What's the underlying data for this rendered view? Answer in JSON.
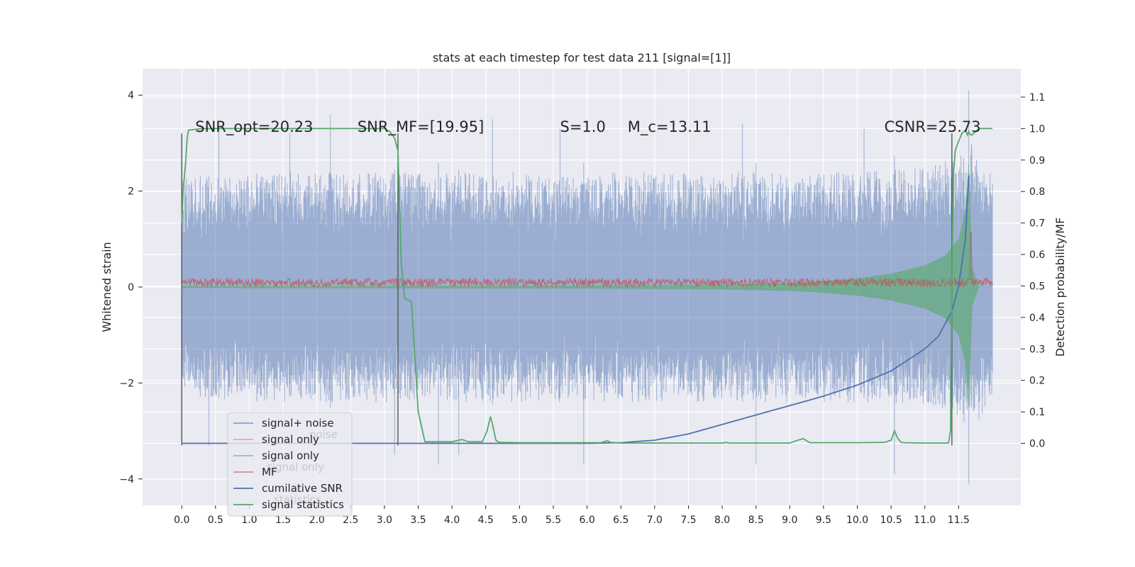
{
  "chart_data": {
    "type": "line",
    "title": "stats at each timestep for test data 211 [signal=[1]]",
    "xlabel": "",
    "ylabel": "Whitened strain",
    "y2label": "Detection probability/MF",
    "xlim": [
      -0.58,
      12.42
    ],
    "ylim": [
      -4.55,
      4.55
    ],
    "y2lim": [
      -0.197,
      1.19
    ],
    "grid": true,
    "x_ticks": [
      "0.0",
      "0.5",
      "1.0",
      "1.5",
      "2.0",
      "2.5",
      "3.0",
      "3.5",
      "4.0",
      "4.5",
      "5.0",
      "5.5",
      "6.0",
      "6.5",
      "7.0",
      "7.5",
      "8.0",
      "8.5",
      "9.0",
      "9.5",
      "10.0",
      "10.5",
      "11.0",
      "11.5"
    ],
    "y_ticks": [
      "4",
      "2",
      "0",
      "−2",
      "−4"
    ],
    "y_tick_values": [
      4,
      2,
      0,
      -2,
      -4
    ],
    "y2_ticks": [
      "1.1",
      "1.0",
      "0.9",
      "0.8",
      "0.7",
      "0.6",
      "0.5",
      "0.4",
      "0.3",
      "0.2",
      "0.1",
      "0.0"
    ],
    "y2_tick_values": [
      1.1,
      1.0,
      0.9,
      0.8,
      0.7,
      0.6,
      0.5,
      0.4,
      0.3,
      0.2,
      0.1,
      0.0
    ],
    "x_tick_values": [
      0.0,
      0.5,
      1.0,
      1.5,
      2.0,
      2.5,
      3.0,
      3.5,
      4.0,
      4.5,
      5.0,
      5.5,
      6.0,
      6.5,
      7.0,
      7.5,
      8.0,
      8.5,
      9.0,
      9.5,
      10.0,
      10.5,
      11.0,
      11.5
    ],
    "annotations": [
      {
        "text": "SNR_opt=20.23",
        "x": 0.2
      },
      {
        "text": "SNR_MF=[19.95]",
        "x": 2.6
      },
      {
        "text": "S=1.0",
        "x": 5.6
      },
      {
        "text": "M_c=13.11",
        "x": 6.6
      },
      {
        "text": "CSNR=25.73",
        "x": 10.4
      }
    ],
    "annotation_y2": 0.99,
    "legend": {
      "placement": "lower-left",
      "entries": [
        {
          "label": "signal+ noise",
          "color": "#4c72b0"
        },
        {
          "label": "signal only",
          "color": "#dd8452"
        },
        {
          "label": "signal only",
          "color": "#55a868"
        },
        {
          "label": "MF",
          "color": "#c44e52"
        },
        {
          "label": "cumilative SNR",
          "color": "#4c72b0"
        },
        {
          "label": "signal statistics",
          "color": "#55a868"
        }
      ],
      "ghost_labels": [
        "noise",
        "signal only",
        "statistics"
      ]
    },
    "series": [
      {
        "name": "signal+ noise",
        "color": "#4c72b0",
        "axis": "left",
        "envelope_x": [
          0.0,
          1.0,
          2.0,
          3.0,
          4.0,
          5.0,
          6.0,
          7.0,
          8.0,
          9.0,
          10.0,
          11.0,
          11.5,
          11.7,
          12.0
        ],
        "envelope_upper": [
          2.3,
          2.4,
          2.4,
          2.4,
          2.4,
          2.4,
          2.4,
          2.4,
          2.4,
          2.4,
          2.4,
          2.5,
          2.7,
          3.0,
          2.4
        ],
        "envelope_lower": [
          -2.3,
          -2.4,
          -2.4,
          -2.4,
          -2.4,
          -2.4,
          -2.4,
          -2.4,
          -2.4,
          -2.4,
          -2.4,
          -2.5,
          -2.7,
          -3.0,
          -2.4
        ],
        "peaks": [
          {
            "x": 2.2,
            "y": 3.6
          },
          {
            "x": 0.55,
            "y": 3.3
          },
          {
            "x": 1.6,
            "y": 3.2
          },
          {
            "x": 4.6,
            "y": 3.5
          },
          {
            "x": 5.6,
            "y": 3.3
          },
          {
            "x": 8.3,
            "y": 3.4
          },
          {
            "x": 10.1,
            "y": 3.3
          },
          {
            "x": 11.65,
            "y": 4.1
          },
          {
            "x": 4.1,
            "y": -3.5
          },
          {
            "x": 3.8,
            "y": -3.7
          },
          {
            "x": 5.95,
            "y": -3.7
          },
          {
            "x": 8.5,
            "y": -3.7
          },
          {
            "x": 10.55,
            "y": -3.9
          },
          {
            "x": 11.65,
            "y": -4.1
          },
          {
            "x": 0.4,
            "y": -3.3
          },
          {
            "x": 3.15,
            "y": -3.5
          }
        ]
      },
      {
        "name": "signal only",
        "color": "#55a868",
        "axis": "left",
        "envelope_x": [
          0.0,
          6.0,
          8.0,
          9.0,
          9.5,
          10.0,
          10.5,
          11.0,
          11.3,
          11.5,
          11.6,
          11.65,
          11.7,
          11.8,
          12.0
        ],
        "envelope_amp": [
          0.02,
          0.03,
          0.05,
          0.08,
          0.12,
          0.18,
          0.28,
          0.45,
          0.65,
          1.0,
          1.6,
          2.6,
          0.4,
          0.0,
          0.0
        ]
      },
      {
        "name": "MF",
        "color": "#c44e52",
        "axis": "right",
        "baseline": 0.5,
        "noise_band": [
          0.497,
          0.525
        ],
        "spike": {
          "x": 11.68,
          "y": 0.67
        }
      },
      {
        "name": "cumilative SNR",
        "color": "#4c72b0",
        "axis": "right",
        "x": [
          0.0,
          6.0,
          6.5,
          7.0,
          7.5,
          8.0,
          8.5,
          9.0,
          9.5,
          10.0,
          10.5,
          11.0,
          11.2,
          11.4,
          11.5,
          11.6,
          11.65
        ],
        "y": [
          0.0,
          0.0,
          0.002,
          0.01,
          0.03,
          0.06,
          0.09,
          0.12,
          0.15,
          0.185,
          0.23,
          0.3,
          0.34,
          0.42,
          0.5,
          0.65,
          0.85
        ]
      },
      {
        "name": "signal statistics",
        "color": "#55a868",
        "axis": "right",
        "x": [
          0.0,
          0.02,
          0.04,
          0.06,
          0.08,
          0.1,
          0.3,
          1.0,
          2.0,
          3.0,
          3.08,
          3.15,
          3.2,
          3.25,
          3.3,
          3.4,
          3.5,
          3.6,
          4.0,
          4.1,
          4.15,
          4.25,
          4.45,
          4.52,
          4.57,
          4.6,
          4.65,
          4.7,
          5.0,
          6.2,
          6.3,
          6.35,
          6.5,
          8.0,
          8.05,
          8.1,
          9.0,
          9.15,
          9.2,
          9.25,
          9.3,
          10.0,
          10.4,
          10.5,
          10.55,
          10.6,
          10.65,
          10.7,
          11.0,
          11.35,
          11.38,
          11.4,
          11.42,
          11.45,
          11.5,
          11.55,
          11.6,
          11.63,
          11.65,
          11.66,
          11.68,
          11.7,
          11.72,
          11.75,
          11.8,
          11.85,
          12.0
        ],
        "y": [
          0.7,
          0.8,
          0.85,
          0.9,
          0.97,
          0.995,
          1.0,
          1.0,
          1.0,
          1.0,
          0.99,
          0.97,
          0.93,
          0.57,
          0.46,
          0.45,
          0.1,
          0.005,
          0.005,
          0.01,
          0.012,
          0.005,
          0.005,
          0.04,
          0.085,
          0.06,
          0.01,
          0.003,
          0.002,
          0.002,
          0.008,
          0.003,
          0.001,
          0.001,
          0.003,
          0.001,
          0.001,
          0.012,
          0.015,
          0.008,
          0.002,
          0.002,
          0.003,
          0.01,
          0.04,
          0.015,
          0.003,
          0.002,
          0.001,
          0.001,
          0.04,
          0.5,
          0.85,
          0.93,
          0.96,
          0.985,
          0.995,
          0.98,
          0.99,
          0.985,
          0.98,
          0.98,
          0.985,
          0.99,
          1.0,
          1.0,
          1.0
        ]
      }
    ],
    "vertical_markers": [
      {
        "x": 0.0,
        "y_from": -3.3,
        "y_to": 3.2
      },
      {
        "x": 3.2,
        "y_from": -3.3,
        "y_to": 3.2
      },
      {
        "x": 11.4,
        "y_from": -3.3,
        "y_to": 3.2
      }
    ]
  }
}
